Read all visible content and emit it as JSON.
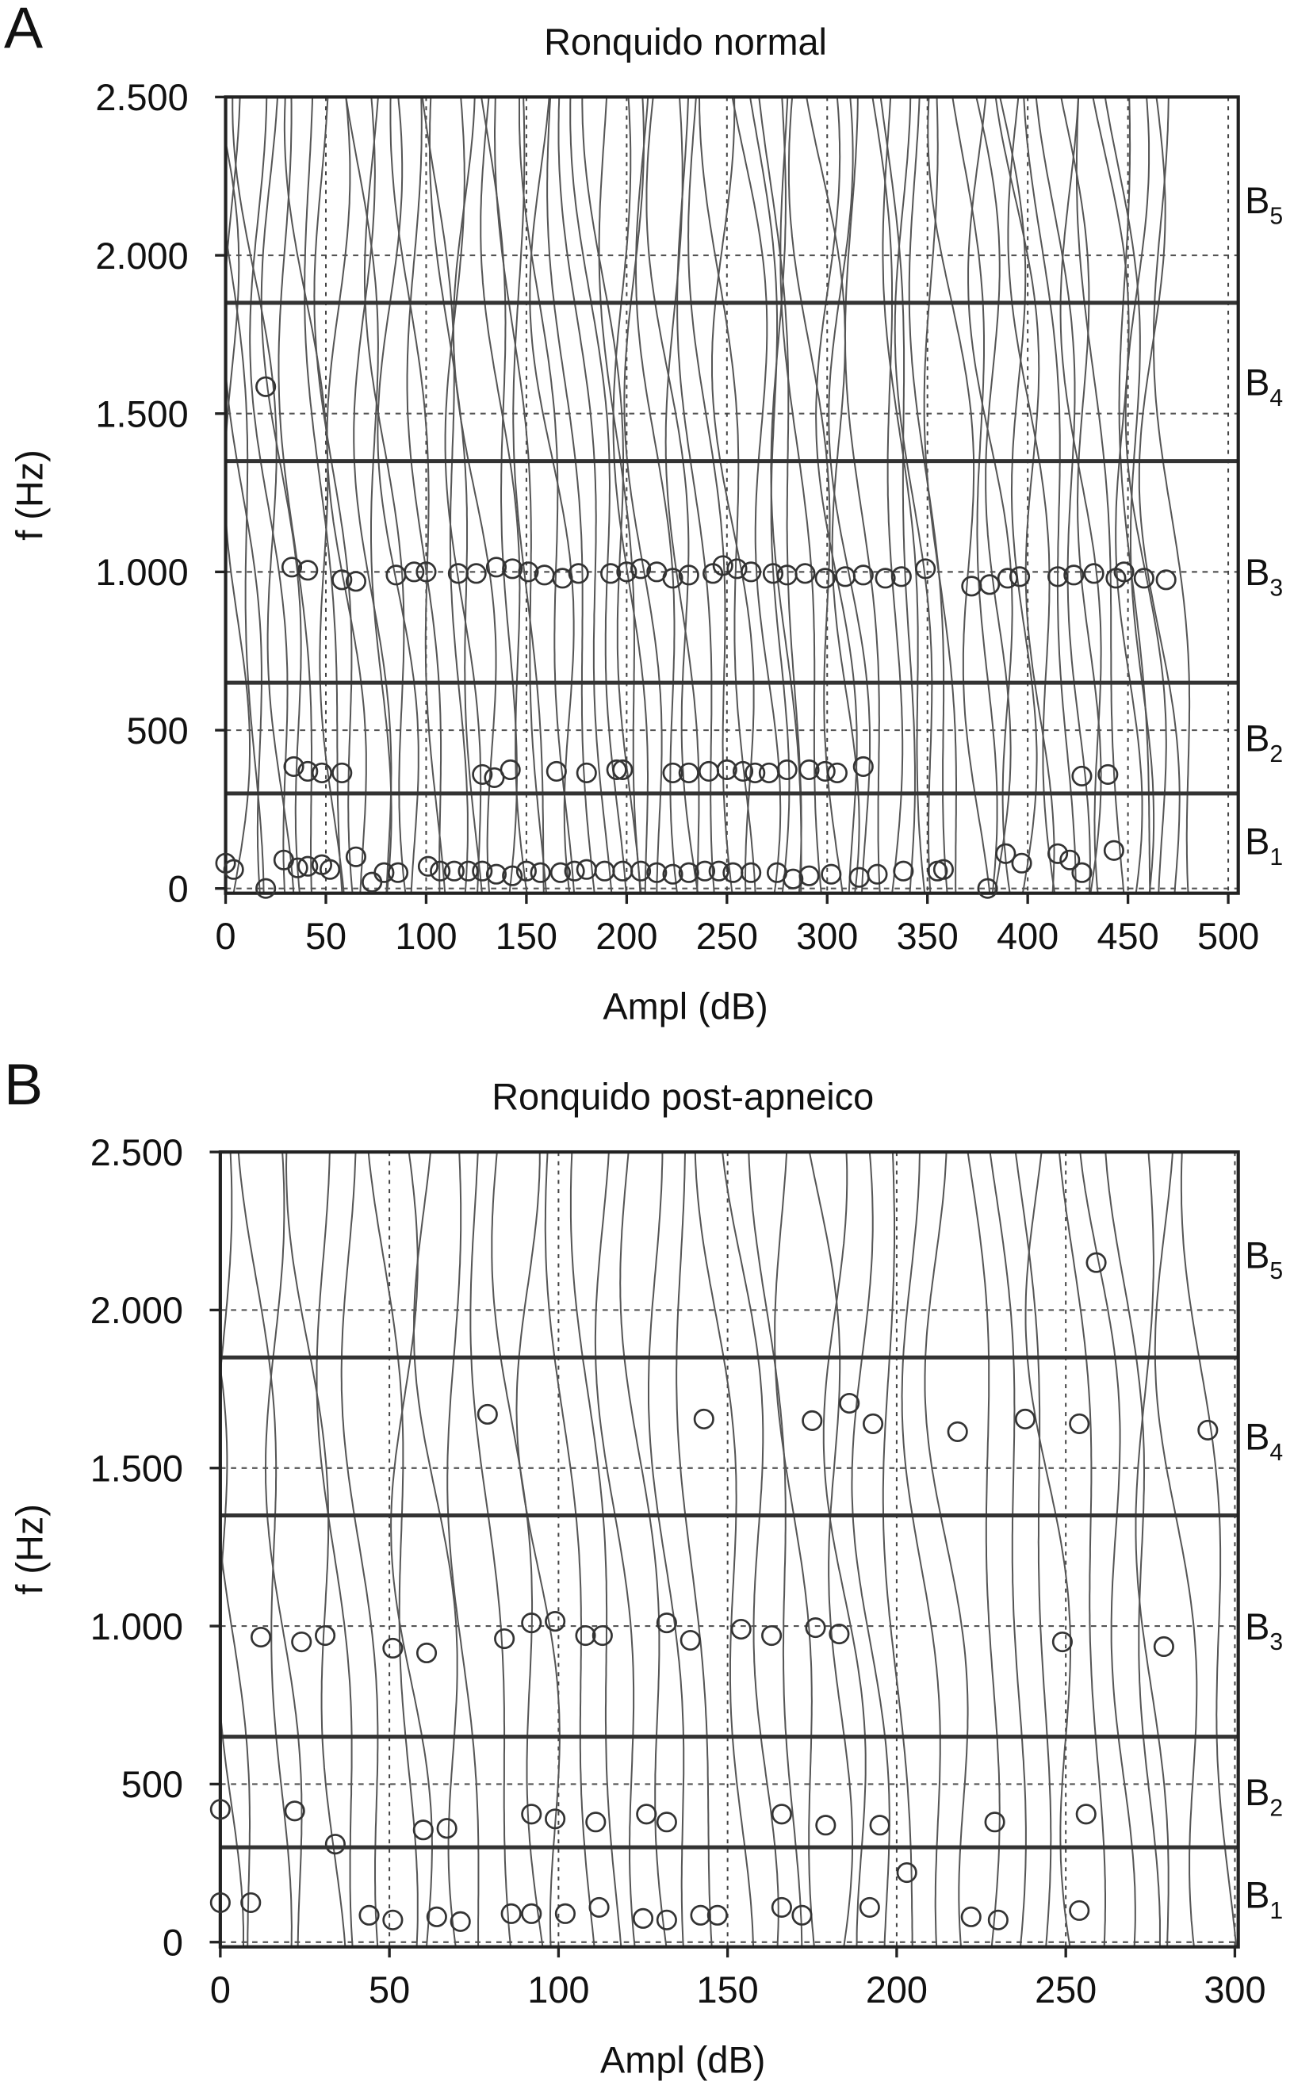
{
  "chart_data": [
    {
      "type": "scatter",
      "panel": "A",
      "title": "Ronquido normal",
      "x_label": "Ampl (dB)",
      "y_label": "f (Hz)",
      "xlim": [
        0,
        505
      ],
      "ylim": [
        -15,
        2500
      ],
      "xticks": [
        0,
        50,
        100,
        150,
        200,
        250,
        300,
        350,
        400,
        450,
        500
      ],
      "yticks": [
        0,
        500,
        {
          "value": 1000,
          "label": "1.000"
        },
        {
          "value": 1500,
          "label": "1.500"
        },
        {
          "value": 2000,
          "label": "2.000"
        },
        {
          "value": 2500,
          "label": "2.500"
        }
      ],
      "band_edges": [
        300,
        650,
        1350,
        1850
      ],
      "bands": [
        {
          "label": "B",
          "subscript": "1"
        },
        {
          "label": "B",
          "subscript": "2"
        },
        {
          "label": "B",
          "subscript": "3"
        },
        {
          "label": "B",
          "subscript": "4"
        },
        {
          "label": "B",
          "subscript": "5"
        }
      ],
      "color": "#333333",
      "x": [
        20,
        33,
        41,
        58,
        65,
        85,
        94,
        100,
        116,
        125,
        135,
        143,
        151,
        159,
        168,
        176,
        192,
        200,
        207,
        215,
        223,
        231,
        243,
        248,
        255,
        262,
        273,
        280,
        289,
        299,
        309,
        318,
        329,
        337,
        349,
        372,
        381,
        390,
        396,
        415,
        423,
        433,
        444,
        448,
        458,
        469,
        34,
        41,
        48,
        58,
        128,
        134,
        142,
        165,
        180,
        195,
        198,
        223,
        231,
        241,
        250,
        258,
        264,
        271,
        280,
        291,
        299,
        305,
        318,
        427,
        440,
        0,
        4,
        20,
        29,
        36,
        41,
        48,
        52,
        65,
        73,
        79,
        86,
        101,
        107,
        114,
        121,
        128,
        135,
        143,
        150,
        157,
        167,
        174,
        180,
        189,
        198,
        207,
        215,
        223,
        231,
        239,
        246,
        253,
        262,
        275,
        283,
        291,
        302,
        316,
        325,
        338,
        355,
        358,
        380,
        389,
        397,
        415,
        421,
        427,
        443
      ],
      "values": [
        1585,
        1015,
        1005,
        975,
        970,
        990,
        1000,
        1000,
        995,
        995,
        1015,
        1010,
        1000,
        990,
        980,
        995,
        995,
        1000,
        1010,
        1000,
        980,
        990,
        995,
        1020,
        1010,
        1000,
        995,
        990,
        995,
        980,
        985,
        990,
        980,
        985,
        1010,
        955,
        960,
        980,
        985,
        985,
        990,
        995,
        980,
        1000,
        980,
        975,
        385,
        370,
        365,
        365,
        360,
        350,
        375,
        370,
        365,
        375,
        375,
        365,
        365,
        370,
        375,
        370,
        365,
        365,
        375,
        375,
        370,
        365,
        385,
        355,
        360,
        80,
        60,
        0,
        90,
        65,
        70,
        75,
        60,
        100,
        20,
        50,
        50,
        70,
        55,
        55,
        55,
        55,
        45,
        40,
        55,
        50,
        50,
        55,
        60,
        55,
        55,
        55,
        50,
        45,
        50,
        55,
        55,
        50,
        50,
        50,
        30,
        40,
        45,
        35,
        45,
        55,
        55,
        60,
        0,
        110,
        80,
        110,
        90,
        50,
        120
      ]
    },
    {
      "type": "scatter",
      "panel": "B",
      "title": "Ronquido post-apneico",
      "x_label": "Ampl (dB)",
      "y_label": "f (Hz)",
      "xlim": [
        0,
        301
      ],
      "ylim": [
        -15,
        2500
      ],
      "xticks": [
        0,
        50,
        100,
        150,
        200,
        250,
        300
      ],
      "yticks": [
        0,
        500,
        {
          "value": 1000,
          "label": "1.000"
        },
        {
          "value": 1500,
          "label": "1.500"
        },
        {
          "value": 2000,
          "label": "2.000"
        },
        {
          "value": 2500,
          "label": "2.500"
        }
      ],
      "band_edges": [
        300,
        650,
        1350,
        1850
      ],
      "bands": [
        {
          "label": "B",
          "subscript": "1"
        },
        {
          "label": "B",
          "subscript": "2"
        },
        {
          "label": "B",
          "subscript": "3"
        },
        {
          "label": "B",
          "subscript": "4"
        },
        {
          "label": "B",
          "subscript": "5"
        }
      ],
      "color": "#333333",
      "x": [
        259,
        79,
        143,
        175,
        186,
        193,
        218,
        238,
        254,
        292,
        12,
        24,
        31,
        51,
        61,
        84,
        92,
        99,
        108,
        113,
        132,
        139,
        154,
        163,
        176,
        183,
        249,
        279,
        0,
        22,
        60,
        67,
        92,
        99,
        111,
        126,
        132,
        166,
        179,
        195,
        229,
        256,
        203,
        34,
        0,
        9,
        44,
        51,
        64,
        71,
        86,
        92,
        102,
        112,
        125,
        132,
        142,
        147,
        166,
        172,
        192,
        222,
        230,
        254
      ],
      "values": [
        2150,
        1670,
        1655,
        1650,
        1705,
        1640,
        1615,
        1655,
        1640,
        1620,
        965,
        950,
        970,
        930,
        915,
        960,
        1010,
        1015,
        970,
        970,
        1010,
        955,
        990,
        970,
        995,
        975,
        950,
        935,
        420,
        415,
        355,
        360,
        405,
        390,
        380,
        405,
        380,
        405,
        370,
        370,
        380,
        405,
        220,
        310,
        125,
        125,
        85,
        70,
        80,
        65,
        90,
        90,
        90,
        110,
        75,
        70,
        85,
        85,
        110,
        85,
        110,
        80,
        70,
        100
      ]
    }
  ]
}
